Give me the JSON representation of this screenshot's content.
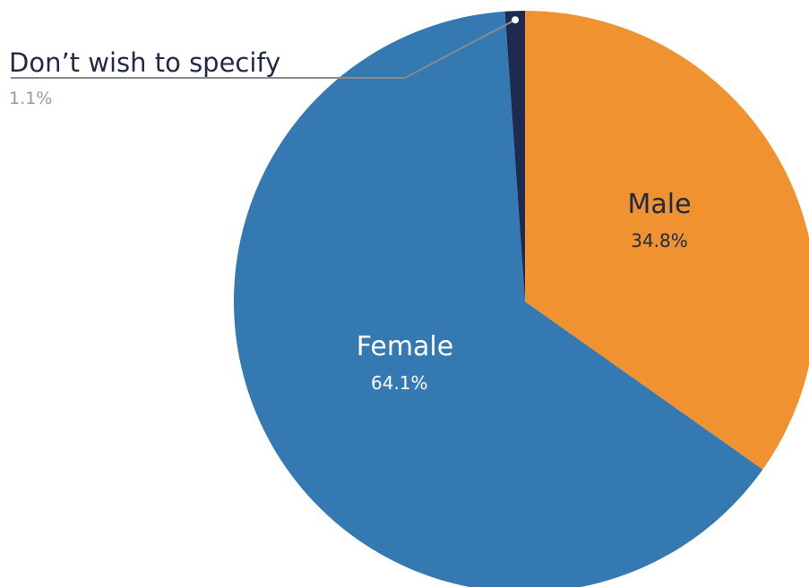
{
  "chart_data": {
    "type": "pie",
    "title": "",
    "start_angle_deg": 0,
    "direction": "clockwise",
    "slices": [
      {
        "label": "Male",
        "value": 34.8,
        "value_label": "34.8%",
        "color": "#ef922f",
        "label_color": "#1f2a44",
        "label_placement": "inside"
      },
      {
        "label": "Female",
        "value": 64.1,
        "value_label": "64.1%",
        "color": "#3479b2",
        "label_color": "#ffffff",
        "label_placement": "inside"
      },
      {
        "label": "Don’t wish to specify",
        "value": 1.1,
        "value_label": "1.1%",
        "color": "#1f2a50",
        "label_color": "#1f2a44",
        "value_label_color": "#999999",
        "label_placement": "callout-left"
      }
    ],
    "callout_color": "#8a8a8a"
  }
}
